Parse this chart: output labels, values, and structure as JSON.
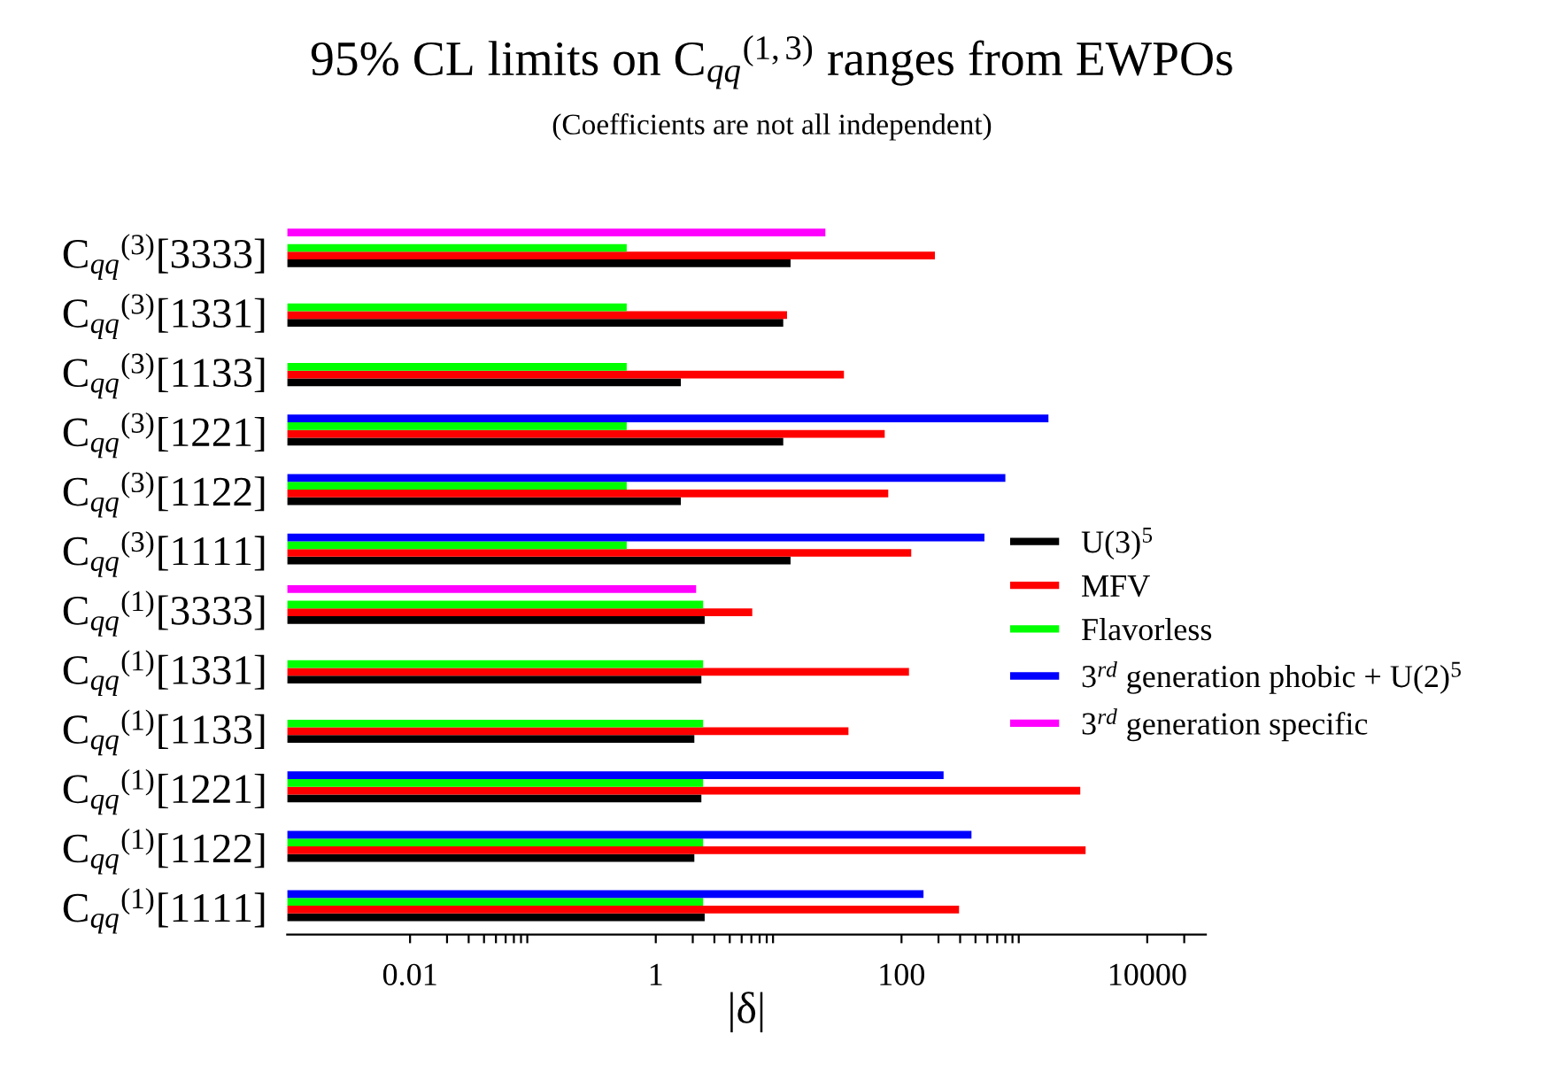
{
  "chart_data": {
    "type": "bar",
    "orientation": "horizontal",
    "title": "95% CL limits on C$_{qq}$$^{(1,3)}$ ranges from EWPOs",
    "subtitle": "(Coefficients are not all independent)",
    "xlabel": "|δ|",
    "categories": [
      "C$_{qq}$$^{(3)}$[3333]",
      "C$_{qq}$$^{(3)}$[1331]",
      "C$_{qq}$$^{(3)}$[1133]",
      "C$_{qq}$$^{(3)}$[1221]",
      "C$_{qq}$$^{(3)}$[1122]",
      "C$_{qq}$$^{(3)}$[1111]",
      "C$_{qq}$$^{(1)}$[3333]",
      "C$_{qq}$$^{(1)}$[1331]",
      "C$_{qq}$$^{(1)}$[1133]",
      "C$_{qq}$$^{(1)}$[1221]",
      "C$_{qq}$$^{(1)}$[1122]",
      "C$_{qq}$$^{(1)}$[1111]"
    ],
    "series": [
      {
        "name": "U(3)$^{5}$",
        "color": "#000000",
        "values": [
          12.5,
          10.9,
          1.6,
          10.9,
          1.6,
          12.5,
          2.5,
          2.35,
          2.06,
          2.35,
          2.06,
          2.5
        ]
      },
      {
        "name": "MFV",
        "color": "#ff0000",
        "values": [
          187,
          11.7,
          34,
          73,
          78,
          120,
          6.1,
          115,
          37,
          2850,
          3150,
          294
        ]
      },
      {
        "name": "Flavorless",
        "color": "#00ff00",
        "values": [
          0.58,
          0.58,
          0.58,
          0.58,
          0.58,
          0.58,
          2.43,
          2.43,
          2.43,
          2.43,
          2.43,
          2.43
        ]
      },
      {
        "name": "3$^{rd}$ generation phobic + U(2)$^{5}$",
        "color": "#0000ff",
        "values": [
          null,
          null,
          null,
          1570,
          700,
          473,
          null,
          null,
          null,
          220,
          371,
          151
        ]
      },
      {
        "name": "3$^{rd}$ generation specific",
        "color": "#ff00ff",
        "values": [
          24,
          null,
          null,
          null,
          null,
          null,
          2.13,
          null,
          null,
          null,
          null,
          null
        ]
      }
    ],
    "log": "x",
    "xlim": [
      0.001,
      30000
    ],
    "xticks": [
      0.01,
      1,
      100,
      10000,
      {
        "value": 0.02,
        "label": null
      },
      {
        "value": 0.03,
        "label": null
      },
      {
        "value": 0.04,
        "label": null
      },
      {
        "value": 0.05,
        "label": null
      },
      {
        "value": 0.06,
        "label": null
      },
      {
        "value": 0.07,
        "label": null
      },
      {
        "value": 0.08,
        "label": null
      },
      {
        "value": 0.09,
        "label": null
      },
      {
        "value": 2,
        "label": null
      },
      {
        "value": 3,
        "label": null
      },
      {
        "value": 4,
        "label": null
      },
      {
        "value": 5,
        "label": null
      },
      {
        "value": 6,
        "label": null
      },
      {
        "value": 7,
        "label": null
      },
      {
        "value": 8,
        "label": null
      },
      {
        "value": 9,
        "label": null
      },
      {
        "value": 200,
        "label": null
      },
      {
        "value": 300,
        "label": null
      },
      {
        "value": 400,
        "label": null
      },
      {
        "value": 500,
        "label": null
      },
      {
        "value": 600,
        "label": null
      },
      {
        "value": 700,
        "label": null
      },
      {
        "value": 800,
        "label": null
      },
      {
        "value": 900,
        "label": null
      },
      {
        "value": 20000,
        "label": null
      }
    ],
    "grid": false,
    "legend": "right"
  }
}
